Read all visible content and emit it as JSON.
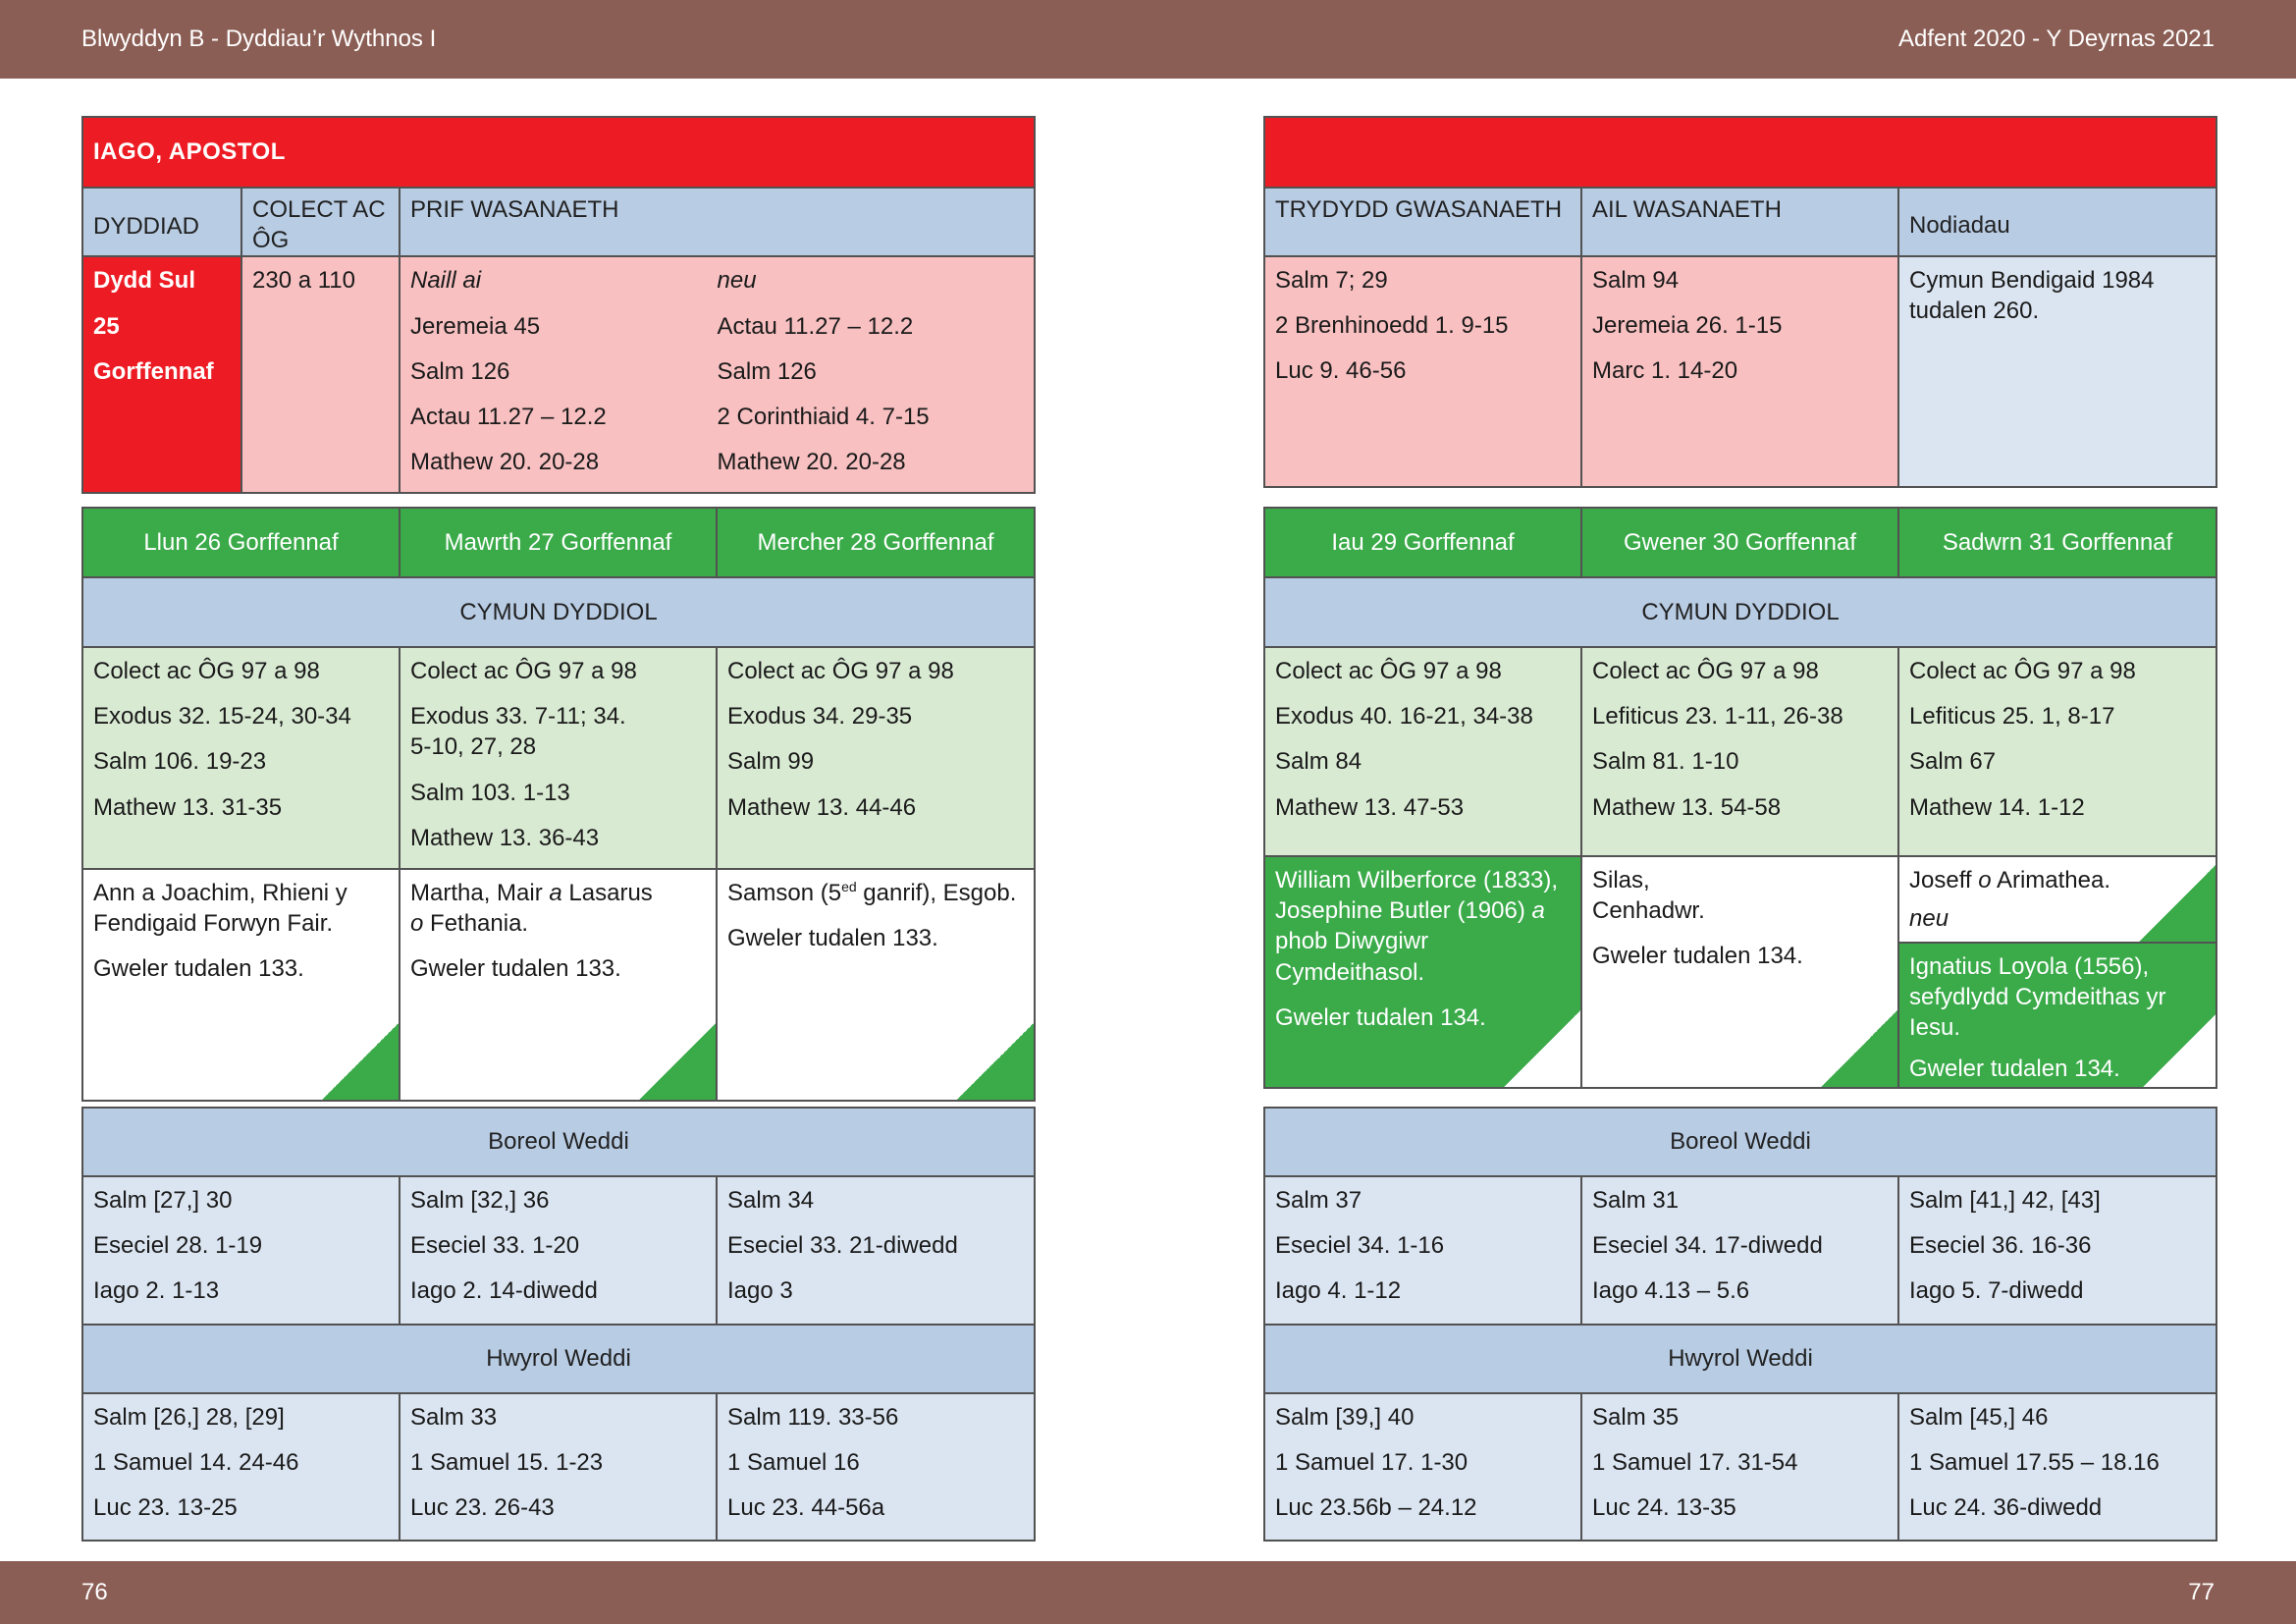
{
  "header": {
    "left": "Blwyddyn  B - Dyddiau’r Wythnos I",
    "right": "Adfent 2020 - Y Deyrnas 2021"
  },
  "footer": {
    "left_page": "76",
    "right_page": "77"
  },
  "sunday_left": {
    "title": "IAGO, APOSTOL",
    "col_date": "DYDDIAD",
    "col_collect": "COLECT AC ÔG",
    "col_principal": "PRIF WASANAETH",
    "date_lines": [
      "Dydd Sul",
      "25",
      "Gorffennaf"
    ],
    "collect": "230 a 110",
    "option_a_label": "Naill ai",
    "option_b_label": "neu",
    "option_a": [
      "Jeremeia 45",
      "Salm 126",
      "Actau 11.27 – 12.2",
      "Mathew 20. 20-28"
    ],
    "option_b": [
      "Actau 11.27 – 12.2",
      "Salm 126",
      "2 Corinthiaid 4. 7-15",
      "Mathew 20. 20-28"
    ]
  },
  "sunday_right": {
    "col_third": "TRYDYDD GWASANAETH",
    "col_second": "AIL WASANAETH",
    "col_notes": "Nodiadau",
    "third": [
      "Salm 7; 29",
      "2 Brenhinoedd 1. 9-15",
      "Luc 9. 46-56"
    ],
    "second": [
      "Salm 94",
      "Jeremeia 26. 1-15",
      "Marc 1. 14-20"
    ],
    "notes": "Cymun Bendigaid 1984 tudalen 260."
  },
  "eucharist_label": "CYMUN DYDDIOL",
  "morning_label": "Boreol Weddi",
  "evening_label": "Hwyrol Weddi",
  "days_left": [
    {
      "day": "Llun 26 Gorffennaf",
      "eucharist": [
        "Colect ac ÔG 97 a 98",
        "Exodus 32. 15-24, 30-34",
        "Salm 106. 19-23",
        "Mathew 13. 31-35"
      ],
      "commem": "Ann a Joachim, Rhieni y Fendigaid Forwyn Fair.",
      "see": "Gweler tudalen 133.",
      "morning": [
        "Salm [27,] 30",
        "Eseciel 28. 1-19",
        "Iago 2. 1-13"
      ],
      "evening": [
        "Salm [26,] 28, [29]",
        "1 Samuel 14. 24-46",
        "Luc 23. 13-25"
      ]
    },
    {
      "day": "Mawrth 27 Gorffennaf",
      "eucharist": [
        "Colect ac ÔG 97 a 98",
        "Exodus 33. 7-11; 34. 5-10, 27, 28",
        "Salm 103. 1-13",
        "Mathew 13. 36-43"
      ],
      "commem_a": "Martha, Mair ",
      "commem_b": "a",
      "commem_c": " Lasarus",
      "commem_d": "o",
      "commem_e": " Fethania.",
      "see": "Gweler tudalen 133.",
      "morning": [
        "Salm [32,] 36",
        "Eseciel 33. 1-20",
        "Iago 2. 14-diwedd"
      ],
      "evening": [
        "Salm 33",
        "1 Samuel 15. 1-23",
        "Luc 23. 26-43"
      ]
    },
    {
      "day": "Mercher 28 Gorffennaf",
      "eucharist": [
        "Colect ac ÔG 97 a 98",
        "Exodus 34. 29-35",
        "Salm 99",
        "Mathew 13. 44-46"
      ],
      "commem_a": "Samson (5",
      "commem_sup": "ed",
      "commem_b": " ganrif), Esgob.",
      "see": "Gweler tudalen 133.",
      "morning": [
        "Salm 34",
        "Eseciel 33. 21-diwedd",
        "Iago 3"
      ],
      "evening": [
        "Salm 119. 33-56",
        "1 Samuel 16",
        "Luc 23. 44-56a"
      ]
    }
  ],
  "days_right": [
    {
      "day": "Iau 29 Gorffennaf",
      "eucharist": [
        "Colect ac ÔG 97 a 98",
        "Exodus 40. 16-21, 34-38",
        "Salm 84",
        "Mathew 13. 47-53"
      ],
      "commem_a": "William Wilberforce (1833), Josephine Butler (1906) ",
      "commem_b": "a",
      "commem_c": " phob Diwygiwr Cymdeithasol.",
      "see": "Gweler tudalen 134.",
      "morning": [
        "Salm 37",
        "Eseciel 34. 1-16",
        "Iago 4. 1-12"
      ],
      "evening": [
        "Salm [39,] 40",
        "1 Samuel 17. 1-30",
        "Luc 23.56b – 24.12"
      ]
    },
    {
      "day": "Gwener 30 Gorffennaf",
      "eucharist": [
        "Colect ac ÔG 97 a 98",
        "Lefiticus 23. 1-11, 26-38",
        "Salm 81. 1-10",
        "Mathew 13. 54-58"
      ],
      "commem": "Silas, Cenhadwr.",
      "see": "Gweler tudalen 134.",
      "morning": [
        "Salm 31",
        "Eseciel 34. 17-diwedd",
        "Iago 4.13 – 5.6"
      ],
      "evening": [
        "Salm 35",
        "1 Samuel 17. 31-54",
        "Luc 24. 13-35"
      ]
    },
    {
      "day": "Sadwrn 31 Gorffennaf",
      "eucharist": [
        "Colect ac ÔG 97 a 98",
        "Lefiticus 25. 1, 8-17",
        "Salm 67",
        "Mathew 14. 1-12"
      ],
      "commem_a": "Joseff ",
      "commem_b": "o",
      "commem_c": " Arimathea.",
      "or_label": "neu",
      "commem_alt": "Ignatius Loyola (1556), sefydlydd Cymdeithas yr Iesu.",
      "see": "Gweler tudalen 134.",
      "morning": [
        "Salm [41,] 42, [43]",
        "Eseciel 36. 16-36",
        "Iago 5. 7-diwedd"
      ],
      "evening": [
        "Salm [45,] 46",
        "1 Samuel 17.55 – 18.16",
        "Luc 24. 36-diwedd"
      ]
    }
  ],
  "colors": {
    "band": "#8b5e55",
    "red": "#ed1c24",
    "green": "#3bab4a",
    "light_green": "#d9ead3",
    "pink": "#f8c0c1",
    "blue_header": "#b8cce4",
    "light_blue": "#dbe5f1"
  }
}
